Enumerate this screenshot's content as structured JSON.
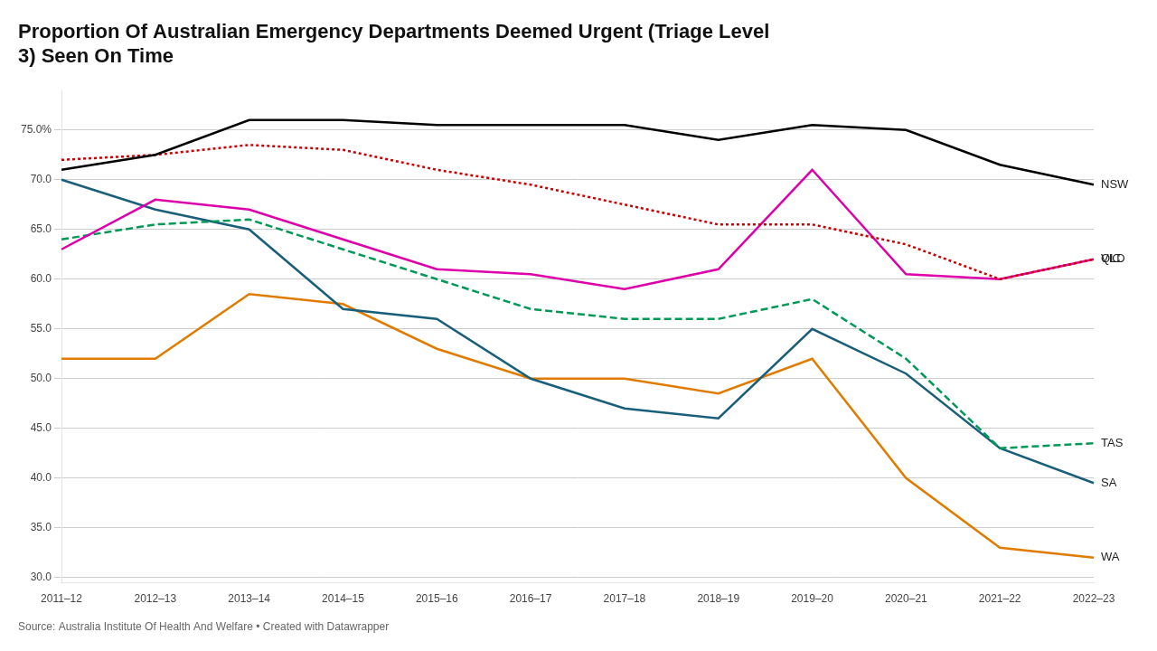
{
  "chart_data": {
    "type": "line",
    "title": "Proportion Of Australian Emergency Departments Deemed Urgent (Triage Level\n3) Seen On Time",
    "annotations": [
      "Source: Australia Institute Of Health And Welfare • Created with Datawrapper"
    ],
    "categories": [
      "2011–12",
      "2012–13",
      "2013–14",
      "2014–15",
      "2015–16",
      "2016–17",
      "2017–18",
      "2018–19",
      "2019–20",
      "2020–21",
      "2021–22",
      "2022–23"
    ],
    "series": [
      {
        "name": "NSW",
        "color": "#000000",
        "line_style": "solid",
        "values": [
          71.0,
          72.5,
          76.0,
          76.0,
          75.5,
          75.5,
          75.5,
          74.0,
          75.5,
          75.0,
          71.5,
          69.5
        ]
      },
      {
        "name": "VIC",
        "color": "#cc0000",
        "line_style": "dotted",
        "values": [
          72.0,
          72.5,
          73.5,
          73.0,
          71.0,
          69.5,
          67.5,
          65.5,
          65.5,
          63.5,
          60.0,
          62.0
        ]
      },
      {
        "name": "QLD",
        "color": "#dd00aa",
        "line_style": "solid",
        "values": [
          63.0,
          68.0,
          67.0,
          64.0,
          61.0,
          60.5,
          59.0,
          61.0,
          71.0,
          60.5,
          60.0,
          62.0
        ]
      },
      {
        "name": "TAS",
        "color": "#009955",
        "line_style": "dashed",
        "values": [
          64.0,
          65.5,
          66.0,
          63.0,
          60.0,
          57.0,
          56.0,
          56.0,
          58.0,
          52.0,
          43.0,
          43.5
        ]
      },
      {
        "name": "SA",
        "color": "#1a5f7a",
        "line_style": "solid",
        "values": [
          70.0,
          67.0,
          65.0,
          57.0,
          56.0,
          50.0,
          47.0,
          46.0,
          55.0,
          50.5,
          43.0,
          39.5
        ]
      },
      {
        "name": "WA",
        "color": "#e07b00",
        "line_style": "solid",
        "values": [
          52.0,
          52.0,
          58.5,
          57.5,
          53.0,
          50.0,
          50.0,
          48.5,
          52.0,
          40.0,
          33.0,
          32.0
        ]
      }
    ],
    "ylim": [
      29.5,
      79.0
    ],
    "yticks": [
      {
        "value": 30,
        "label": "30.0"
      },
      {
        "value": 35,
        "label": "35.0"
      },
      {
        "value": 40,
        "label": "40.0"
      },
      {
        "value": 45,
        "label": "45.0"
      },
      {
        "value": 50,
        "label": "50.0"
      },
      {
        "value": 55,
        "label": "55.0"
      },
      {
        "value": 60,
        "label": "60.0"
      },
      {
        "value": 65,
        "label": "65.0"
      },
      {
        "value": 70,
        "label": "70.0"
      },
      {
        "value": 75,
        "label": "75.0%"
      }
    ],
    "grid": true
  }
}
